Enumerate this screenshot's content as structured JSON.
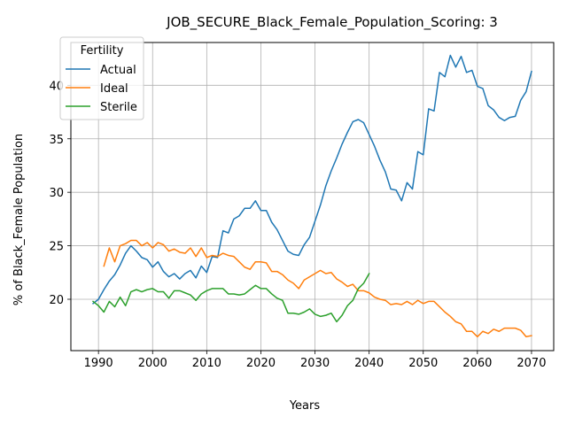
{
  "chart_data": {
    "type": "line",
    "title": "JOB_SECURE_Black_Female_Population_Scoring: 3",
    "xlabel": "Years",
    "ylabel": "% of Black_Female Population",
    "xlim": [
      1984.9,
      2074.1
    ],
    "ylim": [
      15.2,
      44.0
    ],
    "xticks": [
      1990,
      2000,
      2010,
      2020,
      2030,
      2040,
      2050,
      2060,
      2070
    ],
    "yticks": [
      20,
      25,
      30,
      35,
      40
    ],
    "grid": true,
    "legend": {
      "title": "Fertility",
      "placement": "upper left"
    },
    "series": [
      {
        "name": "Actual",
        "color": "#1f77b4",
        "points": [
          [
            1989,
            19.6
          ],
          [
            1990,
            20.0
          ],
          [
            1991,
            20.9
          ],
          [
            1992,
            21.7
          ],
          [
            1993,
            22.3
          ],
          [
            1994,
            23.2
          ],
          [
            1995,
            24.3
          ],
          [
            1996,
            25.0
          ],
          [
            1997,
            24.5
          ],
          [
            1998,
            23.9
          ],
          [
            1999,
            23.7
          ],
          [
            2000,
            23.0
          ],
          [
            2001,
            23.5
          ],
          [
            2002,
            22.6
          ],
          [
            2003,
            22.1
          ],
          [
            2004,
            22.4
          ],
          [
            2005,
            21.9
          ],
          [
            2006,
            22.4
          ],
          [
            2007,
            22.7
          ],
          [
            2008,
            22.0
          ],
          [
            2009,
            23.1
          ],
          [
            2010,
            22.5
          ],
          [
            2011,
            24.0
          ],
          [
            2012,
            23.9
          ],
          [
            2013,
            26.4
          ],
          [
            2014,
            26.2
          ],
          [
            2015,
            27.5
          ],
          [
            2016,
            27.8
          ],
          [
            2017,
            28.5
          ],
          [
            2018,
            28.5
          ],
          [
            2019,
            29.2
          ],
          [
            2020,
            28.3
          ],
          [
            2021,
            28.3
          ],
          [
            2022,
            27.2
          ],
          [
            2023,
            26.5
          ],
          [
            2024,
            25.5
          ],
          [
            2025,
            24.5
          ],
          [
            2026,
            24.2
          ],
          [
            2027,
            24.1
          ],
          [
            2028,
            25.1
          ],
          [
            2029,
            25.8
          ],
          [
            2030,
            27.3
          ],
          [
            2031,
            28.8
          ],
          [
            2032,
            30.6
          ],
          [
            2033,
            32.0
          ],
          [
            2034,
            33.2
          ],
          [
            2035,
            34.5
          ],
          [
            2036,
            35.6
          ],
          [
            2037,
            36.6
          ],
          [
            2038,
            36.8
          ],
          [
            2039,
            36.5
          ],
          [
            2040,
            35.4
          ],
          [
            2041,
            34.3
          ],
          [
            2042,
            33.0
          ],
          [
            2043,
            31.9
          ],
          [
            2044,
            30.3
          ],
          [
            2045,
            30.2
          ],
          [
            2046,
            29.2
          ],
          [
            2047,
            30.9
          ],
          [
            2048,
            30.3
          ],
          [
            2049,
            33.8
          ],
          [
            2050,
            33.5
          ],
          [
            2051,
            37.8
          ],
          [
            2052,
            37.6
          ],
          [
            2053,
            41.2
          ],
          [
            2054,
            40.8
          ],
          [
            2055,
            42.8
          ],
          [
            2056,
            41.7
          ],
          [
            2057,
            42.7
          ],
          [
            2058,
            41.2
          ],
          [
            2059,
            41.4
          ],
          [
            2060,
            39.9
          ],
          [
            2061,
            39.7
          ],
          [
            2062,
            38.1
          ],
          [
            2063,
            37.7
          ],
          [
            2064,
            37.0
          ],
          [
            2065,
            36.7
          ],
          [
            2066,
            37.0
          ],
          [
            2067,
            37.1
          ],
          [
            2068,
            38.6
          ],
          [
            2069,
            39.4
          ],
          [
            2070,
            41.3
          ]
        ]
      },
      {
        "name": "Ideal",
        "color": "#ff7f0e",
        "points": [
          [
            1991,
            23.1
          ],
          [
            1992,
            24.8
          ],
          [
            1993,
            23.5
          ],
          [
            1994,
            25.0
          ],
          [
            1995,
            25.2
          ],
          [
            1996,
            25.5
          ],
          [
            1997,
            25.5
          ],
          [
            1998,
            25.0
          ],
          [
            1999,
            25.3
          ],
          [
            2000,
            24.8
          ],
          [
            2001,
            25.3
          ],
          [
            2002,
            25.1
          ],
          [
            2003,
            24.5
          ],
          [
            2004,
            24.7
          ],
          [
            2005,
            24.4
          ],
          [
            2006,
            24.3
          ],
          [
            2007,
            24.8
          ],
          [
            2008,
            24.0
          ],
          [
            2009,
            24.8
          ],
          [
            2010,
            23.9
          ],
          [
            2011,
            24.1
          ],
          [
            2012,
            24.0
          ],
          [
            2013,
            24.3
          ],
          [
            2014,
            24.1
          ],
          [
            2015,
            24.0
          ],
          [
            2016,
            23.5
          ],
          [
            2017,
            23.0
          ],
          [
            2018,
            22.8
          ],
          [
            2019,
            23.5
          ],
          [
            2020,
            23.5
          ],
          [
            2021,
            23.4
          ],
          [
            2022,
            22.6
          ],
          [
            2023,
            22.6
          ],
          [
            2024,
            22.3
          ],
          [
            2025,
            21.8
          ],
          [
            2026,
            21.5
          ],
          [
            2027,
            21.0
          ],
          [
            2028,
            21.8
          ],
          [
            2029,
            22.1
          ],
          [
            2030,
            22.4
          ],
          [
            2031,
            22.7
          ],
          [
            2032,
            22.4
          ],
          [
            2033,
            22.5
          ],
          [
            2034,
            21.9
          ],
          [
            2035,
            21.6
          ],
          [
            2036,
            21.2
          ],
          [
            2037,
            21.4
          ],
          [
            2038,
            20.8
          ],
          [
            2039,
            20.8
          ],
          [
            2040,
            20.6
          ],
          [
            2041,
            20.2
          ],
          [
            2042,
            20.0
          ],
          [
            2043,
            19.9
          ],
          [
            2044,
            19.5
          ],
          [
            2045,
            19.6
          ],
          [
            2046,
            19.5
          ],
          [
            2047,
            19.8
          ],
          [
            2048,
            19.5
          ],
          [
            2049,
            19.9
          ],
          [
            2050,
            19.6
          ],
          [
            2051,
            19.8
          ],
          [
            2052,
            19.8
          ],
          [
            2053,
            19.3
          ],
          [
            2054,
            18.8
          ],
          [
            2055,
            18.4
          ],
          [
            2056,
            17.9
          ],
          [
            2057,
            17.7
          ],
          [
            2058,
            17.0
          ],
          [
            2059,
            17.0
          ],
          [
            2060,
            16.5
          ],
          [
            2061,
            17.0
          ],
          [
            2062,
            16.8
          ],
          [
            2063,
            17.2
          ],
          [
            2064,
            17.0
          ],
          [
            2065,
            17.3
          ],
          [
            2066,
            17.3
          ],
          [
            2067,
            17.3
          ],
          [
            2068,
            17.1
          ],
          [
            2069,
            16.5
          ],
          [
            2070,
            16.6
          ]
        ]
      },
      {
        "name": "Sterile",
        "color": "#2ca02c",
        "points": [
          [
            1989,
            19.8
          ],
          [
            1990,
            19.4
          ],
          [
            1991,
            18.8
          ],
          [
            1992,
            19.8
          ],
          [
            1993,
            19.3
          ],
          [
            1994,
            20.2
          ],
          [
            1995,
            19.4
          ],
          [
            1996,
            20.7
          ],
          [
            1997,
            20.9
          ],
          [
            1998,
            20.7
          ],
          [
            1999,
            20.9
          ],
          [
            2000,
            21.0
          ],
          [
            2001,
            20.7
          ],
          [
            2002,
            20.7
          ],
          [
            2003,
            20.1
          ],
          [
            2004,
            20.8
          ],
          [
            2005,
            20.8
          ],
          [
            2006,
            20.6
          ],
          [
            2007,
            20.4
          ],
          [
            2008,
            19.9
          ],
          [
            2009,
            20.5
          ],
          [
            2010,
            20.8
          ],
          [
            2011,
            21.0
          ],
          [
            2012,
            21.0
          ],
          [
            2013,
            21.0
          ],
          [
            2014,
            20.5
          ],
          [
            2015,
            20.5
          ],
          [
            2016,
            20.4
          ],
          [
            2017,
            20.5
          ],
          [
            2018,
            20.9
          ],
          [
            2019,
            21.3
          ],
          [
            2020,
            21.0
          ],
          [
            2021,
            21.0
          ],
          [
            2022,
            20.5
          ],
          [
            2023,
            20.1
          ],
          [
            2024,
            19.9
          ],
          [
            2025,
            18.7
          ],
          [
            2026,
            18.7
          ],
          [
            2027,
            18.6
          ],
          [
            2028,
            18.8
          ],
          [
            2029,
            19.1
          ],
          [
            2030,
            18.6
          ],
          [
            2031,
            18.4
          ],
          [
            2032,
            18.5
          ],
          [
            2033,
            18.7
          ],
          [
            2034,
            17.9
          ],
          [
            2035,
            18.5
          ],
          [
            2036,
            19.4
          ],
          [
            2037,
            19.9
          ],
          [
            2038,
            21.0
          ],
          [
            2039,
            21.5
          ],
          [
            2040,
            22.4
          ]
        ]
      }
    ]
  }
}
